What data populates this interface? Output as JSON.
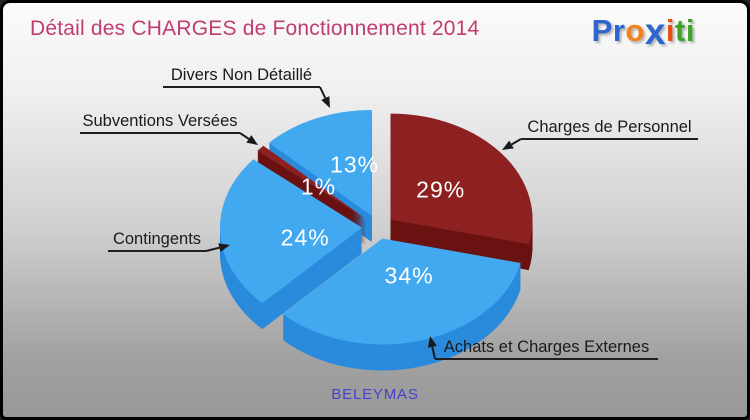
{
  "header": {
    "title": "Détail des CHARGES de Fonctionnement 2014"
  },
  "logo": {
    "text": "Proxiti",
    "letters": [
      {
        "ch": "P",
        "color": "#2E66CF"
      },
      {
        "ch": "r",
        "color": "#2E66CF"
      },
      {
        "ch": "o",
        "color": "#F4821E"
      },
      {
        "ch": "x",
        "color": "#2E66CF",
        "big": true
      },
      {
        "ch": "i",
        "color": "#E8500F"
      },
      {
        "ch": "t",
        "color": "#3FA32B"
      },
      {
        "ch": "i",
        "color": "#3FA32B"
      }
    ]
  },
  "chart_data": {
    "type": "pie",
    "title": "Détail des CHARGES de Fonctionnement 2014",
    "unit": "%",
    "effect": "3d-exploded",
    "start_angle": "12-oclock",
    "direction": "clockwise",
    "value_label_color": "#FFFFFF",
    "slices": [
      {
        "label": "Charges de Personnel",
        "value": 29,
        "pct_label": "29%",
        "top_color": "#8D2121",
        "side_color": "#6A1212"
      },
      {
        "label": "Achats et Charges Externes",
        "value": 34,
        "pct_label": "34%",
        "top_color": "#42A9F0",
        "side_color": "#2A8BDC"
      },
      {
        "label": "Contingents",
        "value": 24,
        "pct_label": "24%",
        "top_color": "#42A9F0",
        "side_color": "#2A8BDC"
      },
      {
        "label": "Subventions Versées",
        "value": 1,
        "pct_label": "1%",
        "top_color": "#8D2121",
        "side_color": "#6A1212"
      },
      {
        "label": "Divers Non Détaillé",
        "value": 13,
        "pct_label": "13%",
        "top_color": "#42A9F0",
        "side_color": "#2A8BDC"
      }
    ]
  },
  "footer": {
    "municipality": "BELEYMAS"
  },
  "colors": {
    "title_text": "#C03C71",
    "footer_text": "#4442CF",
    "callout_text": "#1A1A1A",
    "background_top": "#FBFBFB",
    "background_bottom": "#989898",
    "border": "#000000"
  }
}
